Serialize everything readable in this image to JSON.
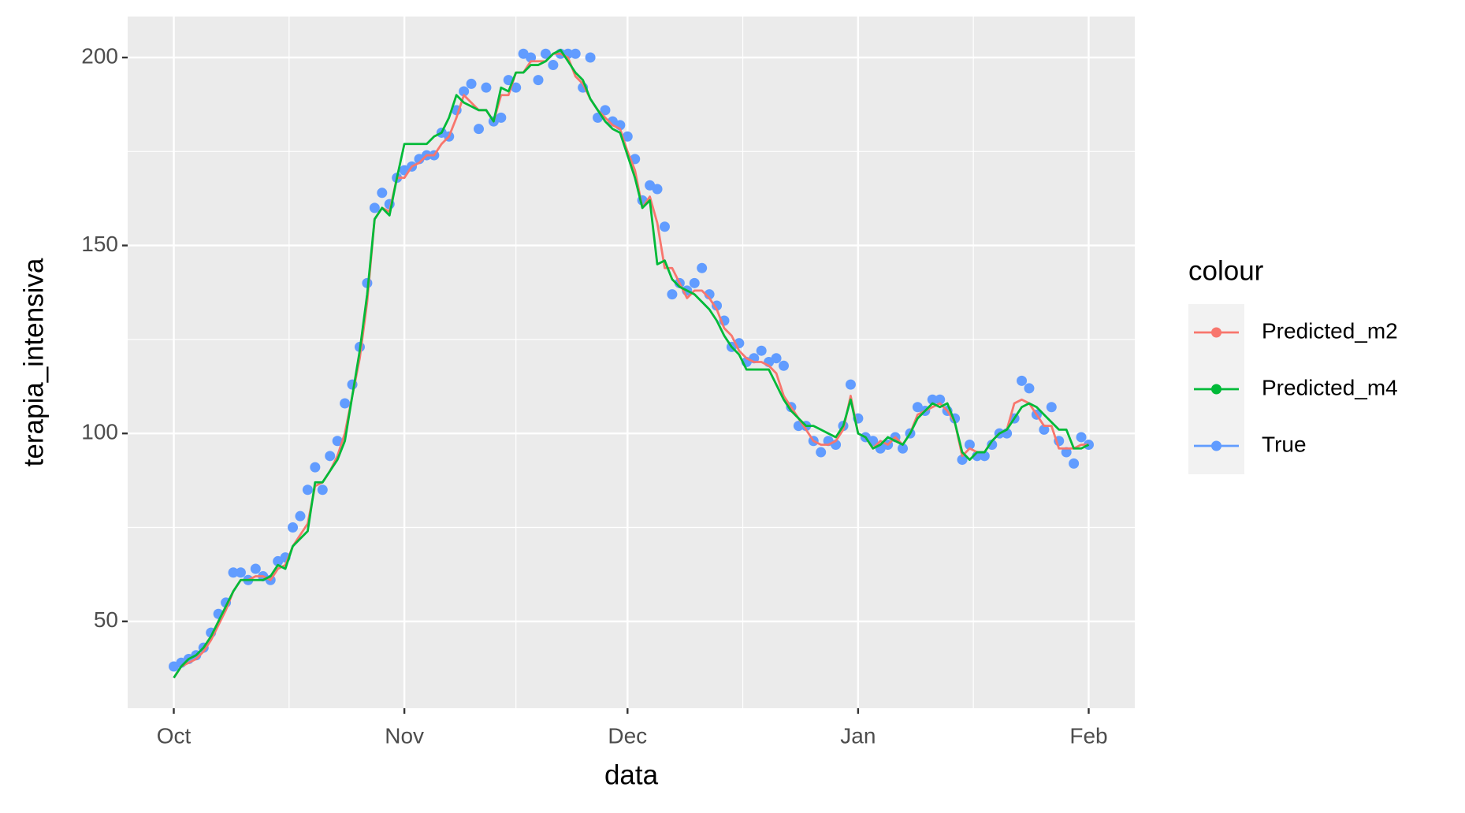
{
  "chart_data": {
    "type": "line",
    "x_label": "data",
    "y_label": "terapia_intensiva",
    "legend_title": "colour",
    "legend_position": "right",
    "grid": true,
    "x": [
      0,
      1,
      2,
      3,
      4,
      5,
      6,
      7,
      8,
      9,
      10,
      11,
      12,
      13,
      14,
      15,
      16,
      17,
      18,
      19,
      20,
      21,
      22,
      23,
      24,
      25,
      26,
      27,
      28,
      29,
      30,
      31,
      32,
      33,
      34,
      35,
      36,
      37,
      38,
      39,
      40,
      41,
      42,
      43,
      44,
      45,
      46,
      47,
      48,
      49,
      50,
      51,
      52,
      53,
      54,
      55,
      56,
      57,
      58,
      59,
      60,
      61,
      62,
      63,
      64,
      65,
      66,
      67,
      68,
      69,
      70,
      71,
      72,
      73,
      74,
      75,
      76,
      77,
      78,
      79,
      80,
      81,
      82,
      83,
      84,
      85,
      86,
      87,
      88,
      89,
      90,
      91,
      92,
      93,
      94,
      95,
      96,
      97,
      98,
      99,
      100,
      101,
      102,
      103,
      104,
      105,
      106,
      107,
      108,
      109,
      110,
      111,
      112,
      113,
      114,
      115,
      116,
      117,
      118,
      119,
      120,
      121,
      122,
      123
    ],
    "xlim": [
      -6.2,
      129.2
    ],
    "xticks": [
      {
        "value": 0,
        "label": "Oct"
      },
      {
        "value": 31,
        "label": "Nov"
      },
      {
        "value": 61,
        "label": "Dec"
      },
      {
        "value": 92,
        "label": "Jan"
      },
      {
        "value": 123,
        "label": "Feb"
      }
    ],
    "xminor": [
      15.5,
      46,
      76.5,
      107.5
    ],
    "ylim": [
      26.9,
      210.9
    ],
    "yticks": [
      50,
      100,
      150,
      200
    ],
    "yminor": [
      75,
      125,
      175
    ],
    "series": [
      {
        "name": "Predicted_m2",
        "color": "#F8766D",
        "geom": "line",
        "values": [
          35,
          38,
          39,
          40,
          42,
          45,
          49,
          53,
          58,
          61,
          61,
          62,
          62,
          61,
          64,
          65,
          70,
          73,
          76,
          86,
          87,
          90,
          94,
          100,
          110,
          120,
          135,
          157,
          160,
          159,
          168,
          168,
          171,
          172,
          174,
          174,
          177,
          179,
          184,
          190,
          188,
          186,
          186,
          183,
          190,
          190,
          196,
          196,
          199,
          199,
          199,
          201,
          201,
          200,
          195,
          193,
          189,
          186,
          184,
          182,
          181,
          175,
          170,
          160,
          163,
          156,
          144,
          144,
          140,
          136,
          138,
          138,
          136,
          133,
          128,
          126,
          122,
          120,
          119,
          119,
          118,
          116,
          110,
          107,
          104,
          101,
          98,
          97,
          97,
          98,
          101,
          110,
          100,
          99,
          96,
          98,
          97,
          99,
          97,
          100,
          105,
          106,
          107,
          108,
          106,
          103,
          94,
          96,
          95,
          95,
          98,
          100,
          101,
          108,
          109,
          108,
          105,
          102,
          102,
          96,
          96,
          96,
          97,
          97
        ]
      },
      {
        "name": "Predicted_m4",
        "color": "#00BA38",
        "geom": "line",
        "values": [
          35,
          38,
          40,
          41,
          43,
          46,
          50,
          54,
          58,
          61,
          61,
          61,
          61,
          62,
          65,
          64,
          70,
          72,
          74,
          87,
          87,
          90,
          93,
          98,
          110,
          122,
          137,
          157,
          160,
          158,
          168,
          177,
          177,
          177,
          177,
          179,
          180,
          184,
          190,
          188,
          187,
          186,
          186,
          183,
          192,
          191,
          196,
          196,
          198,
          198,
          199,
          201,
          202,
          199,
          196,
          194,
          189,
          186,
          183,
          181,
          180,
          174,
          168,
          160,
          162,
          145,
          146,
          141,
          139,
          138,
          137,
          135,
          133,
          130,
          126,
          123,
          121,
          117,
          117,
          117,
          117,
          113,
          109,
          106,
          104,
          102,
          102,
          101,
          100,
          99,
          102,
          109,
          100,
          99,
          96,
          97,
          99,
          98,
          97,
          100,
          104,
          106,
          108,
          107,
          108,
          103,
          95,
          93,
          95,
          95,
          98,
          100,
          101,
          104,
          107,
          108,
          107,
          105,
          103,
          101,
          101,
          96,
          96,
          97
        ]
      },
      {
        "name": "True",
        "color": "#619CFF",
        "geom": "point",
        "values": [
          38,
          39,
          40,
          41,
          43,
          47,
          52,
          55,
          63,
          63,
          61,
          64,
          62,
          61,
          66,
          67,
          75,
          78,
          85,
          91,
          85,
          94,
          98,
          108,
          113,
          123,
          140,
          160,
          164,
          161,
          168,
          170,
          171,
          173,
          174,
          174,
          180,
          179,
          186,
          191,
          193,
          181,
          192,
          183,
          184,
          194,
          192,
          201,
          200,
          194,
          201,
          198,
          201,
          201,
          201,
          192,
          200,
          184,
          186,
          183,
          182,
          179,
          173,
          162,
          166,
          165,
          155,
          137,
          140,
          138,
          140,
          144,
          137,
          134,
          130,
          123,
          124,
          119,
          120,
          122,
          119,
          120,
          118,
          107,
          102,
          102,
          98,
          95,
          98,
          97,
          102,
          113,
          104,
          99,
          98,
          96,
          97,
          99,
          96,
          100,
          107,
          106,
          109,
          109,
          106,
          104,
          93,
          97,
          94,
          94,
          97,
          100,
          100,
          104,
          114,
          112,
          105,
          101,
          107,
          98,
          95,
          92,
          99,
          97
        ]
      }
    ]
  }
}
